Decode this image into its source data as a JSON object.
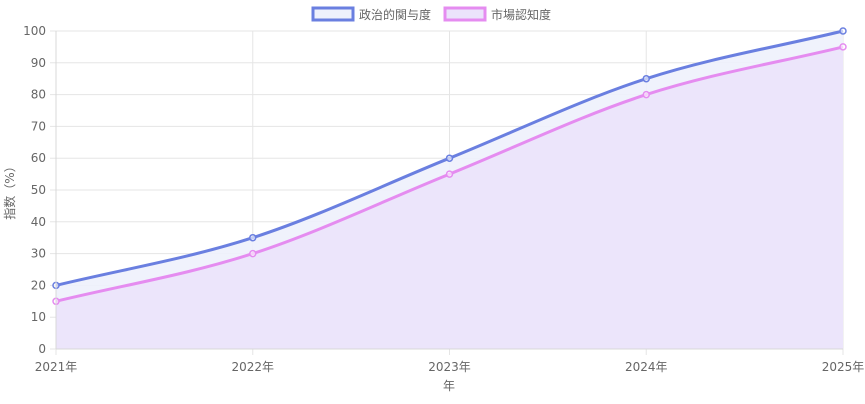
{
  "chart_data": {
    "type": "area",
    "categories": [
      "2021年",
      "2022年",
      "2023年",
      "2024年",
      "2025年"
    ],
    "series": [
      {
        "name": "政治的関与度",
        "values": [
          20,
          35,
          60,
          85,
          100
        ],
        "color": "#6a7fe0",
        "fill": "#eef1fc"
      },
      {
        "name": "市場認知度",
        "values": [
          15,
          30,
          55,
          80,
          95
        ],
        "color": "#e58cf0",
        "fill": "#ebe3fb"
      }
    ],
    "title": "",
    "xlabel": "年",
    "ylabel": "指数（%）",
    "ylim": [
      0,
      100
    ],
    "yticks": [
      0,
      10,
      20,
      30,
      40,
      50,
      60,
      70,
      80,
      90,
      100
    ],
    "grid": true,
    "legend_position": "top-center"
  }
}
